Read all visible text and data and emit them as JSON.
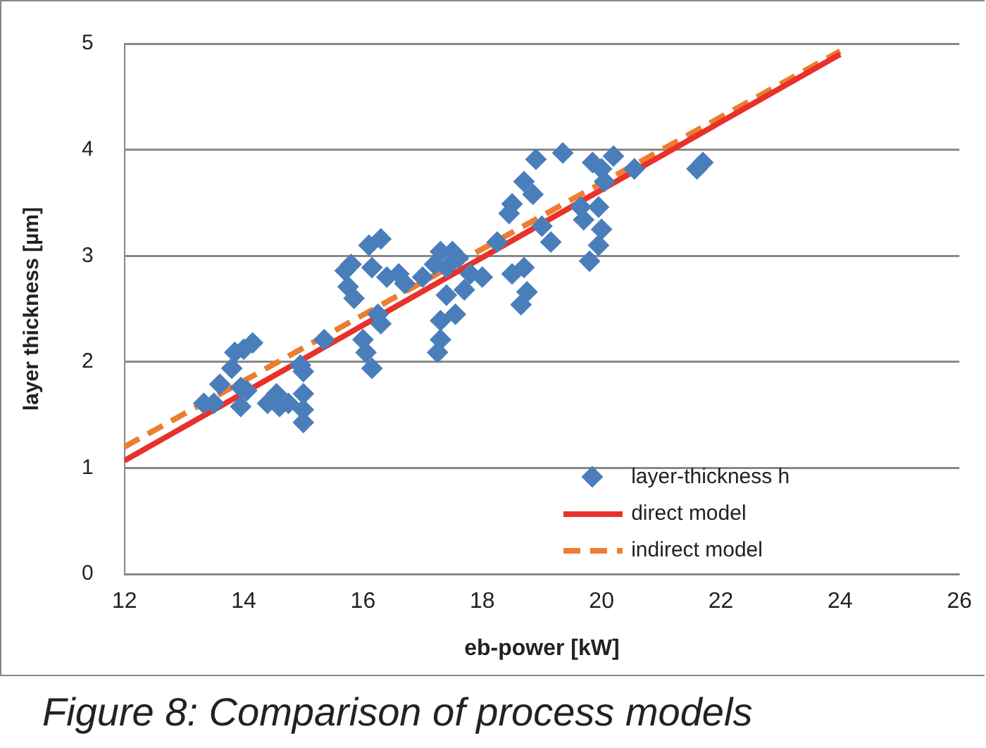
{
  "chart_data": {
    "type": "scatter",
    "xlabel": "eb-power [kW]",
    "ylabel": "layer thickness [µm]",
    "annotations": [
      "Figure 8:  Comparison of process models"
    ],
    "xlim": [
      12,
      26
    ],
    "xticks": [
      12,
      14,
      16,
      18,
      20,
      22,
      24,
      26
    ],
    "ylim": [
      0,
      5
    ],
    "yticks": [
      0,
      1,
      2,
      3,
      4,
      5
    ],
    "grid": "y",
    "legend": "bottom right",
    "series": [
      {
        "name": "layer-thickness h",
        "marker": "diamond",
        "color": "#4a7ebb",
        "x": [
          13.33,
          13.5,
          13.6,
          13.8,
          13.85,
          14.0,
          14.15,
          13.95,
          14.05,
          13.95,
          14.4,
          14.55,
          14.6,
          14.75,
          14.95,
          15.0,
          15.0,
          15.0,
          15.0,
          15.35,
          15.7,
          15.8,
          15.75,
          15.85,
          16.0,
          16.05,
          16.15,
          16.1,
          16.3,
          16.15,
          16.25,
          16.3,
          16.4,
          16.6,
          16.7,
          17.0,
          17.2,
          17.3,
          17.4,
          17.5,
          17.6,
          17.4,
          17.3,
          17.3,
          17.25,
          17.55,
          17.7,
          17.8,
          18.0,
          18.25,
          18.45,
          18.5,
          18.7,
          18.9,
          18.85,
          18.5,
          18.7,
          18.75,
          18.65,
          19.0,
          19.15,
          19.35,
          19.65,
          19.7,
          19.8,
          19.85,
          20.0,
          19.95,
          20.0,
          19.95,
          20.05,
          20.2,
          20.55,
          21.6,
          21.7
        ],
        "values": [
          1.61,
          1.61,
          1.79,
          1.94,
          2.09,
          2.12,
          2.18,
          1.76,
          1.73,
          1.58,
          1.61,
          1.7,
          1.58,
          1.61,
          1.97,
          1.91,
          1.7,
          1.55,
          1.43,
          2.21,
          2.86,
          2.92,
          2.71,
          2.6,
          2.21,
          2.09,
          1.94,
          3.1,
          3.16,
          2.89,
          2.45,
          2.36,
          2.8,
          2.83,
          2.74,
          2.8,
          2.92,
          3.04,
          2.89,
          3.04,
          2.98,
          2.63,
          2.39,
          2.21,
          2.09,
          2.45,
          2.68,
          2.83,
          2.8,
          3.13,
          3.4,
          3.49,
          3.7,
          3.91,
          3.58,
          2.83,
          2.89,
          2.66,
          2.54,
          3.28,
          3.13,
          3.97,
          3.46,
          3.34,
          2.95,
          3.88,
          3.82,
          3.46,
          3.25,
          3.1,
          3.7,
          3.94,
          3.82,
          3.82,
          3.88
        ]
      },
      {
        "name": "direct model",
        "type": "line",
        "marker": "none",
        "color": "#e8312a",
        "line_style": "solid",
        "x": [
          12,
          24
        ],
        "values": [
          1.07,
          4.9
        ]
      },
      {
        "name": "indirect model",
        "type": "line",
        "marker": "none",
        "color": "#ec7d31",
        "line_style": "dashed",
        "x": [
          12,
          24
        ],
        "values": [
          1.2,
          4.93
        ]
      }
    ]
  }
}
